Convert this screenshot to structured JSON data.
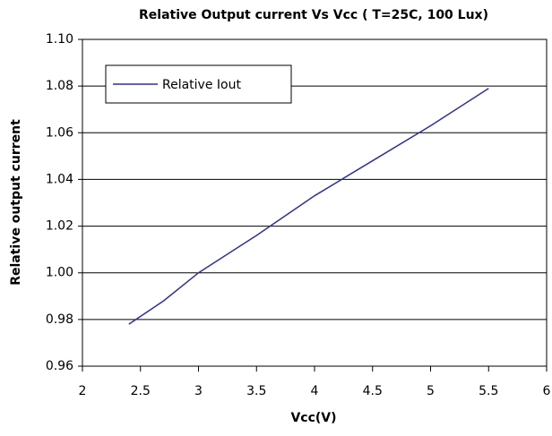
{
  "chart_data": {
    "type": "line",
    "title": "Relative Output current Vs Vcc ( T=25C, 100 Lux)",
    "xlabel": "Vcc(V)",
    "ylabel": "Relative output current",
    "x": [
      2.4,
      2.7,
      3.0,
      3.5,
      4.0,
      4.5,
      5.0,
      5.5
    ],
    "series": [
      {
        "name": "Relative Iout",
        "color": "#2e3192",
        "values": [
          0.978,
          0.988,
          1.0,
          1.016,
          1.033,
          1.048,
          1.063,
          1.079
        ]
      }
    ],
    "xlim": [
      2,
      6
    ],
    "xticks": [
      2,
      2.5,
      3,
      3.5,
      4,
      4.5,
      5,
      5.5,
      6
    ],
    "ylim": [
      0.96,
      1.1
    ],
    "yticks": [
      0.96,
      0.98,
      {
        "value": 1.0,
        "label": "1.00"
      },
      1.02,
      1.04,
      1.06,
      1.08,
      {
        "value": 1.1,
        "label": "1.10"
      }
    ],
    "grid": true,
    "legend": "upper left"
  }
}
